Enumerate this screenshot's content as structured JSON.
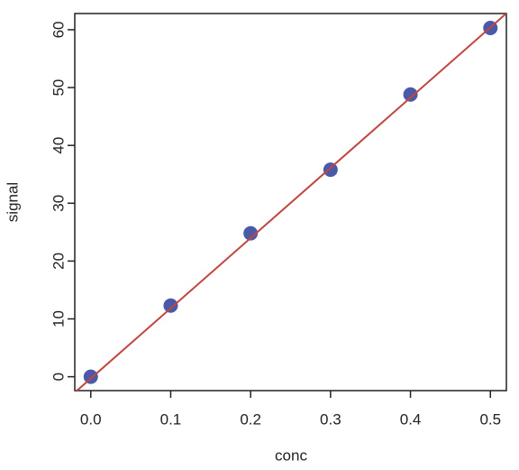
{
  "chart_data": {
    "type": "scatter",
    "xlabel": "conc",
    "ylabel": "signal",
    "x": [
      0.0,
      0.1,
      0.2,
      0.3,
      0.4,
      0.5
    ],
    "values": [
      0.0,
      12.3,
      24.8,
      35.8,
      48.8,
      60.3
    ],
    "color": "#4a5aa8",
    "lines": [
      {
        "intercept": -0.3,
        "slope": 121.4,
        "color": "#c0463f"
      }
    ],
    "xlim": [
      -0.02,
      0.52
    ],
    "ylim": [
      -2.4,
      62.8
    ],
    "xticks": [
      {
        "value": 0,
        "label": "0.0"
      },
      0.1,
      0.2,
      0.3,
      0.4,
      0.5
    ],
    "yticks": [
      0,
      10,
      20,
      30,
      40,
      50,
      60
    ]
  }
}
